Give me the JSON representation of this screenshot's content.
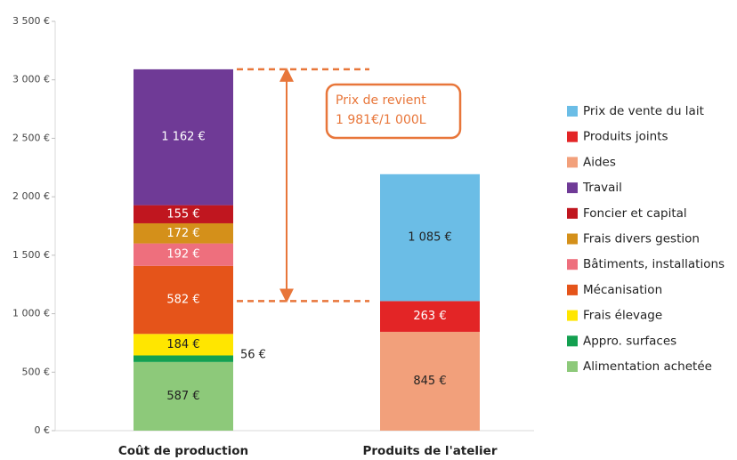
{
  "chart_data": {
    "type": "stacked_bar",
    "categories": [
      "Coût de production",
      "Produits de l'atelier"
    ],
    "series": [
      {
        "name": "Alimentation achetée",
        "color": "#8dc97a",
        "label_color": "#222222",
        "values": [
          587,
          null
        ],
        "value_labels": [
          "587 €",
          null
        ]
      },
      {
        "name": "Appro. surfaces",
        "color": "#13a050",
        "label_color": "#222222",
        "values": [
          56,
          null
        ],
        "value_labels": [
          "56 €",
          null
        ]
      },
      {
        "name": "Frais élevage",
        "color": "#ffe600",
        "label_color": "#222222",
        "values": [
          184,
          null
        ],
        "value_labels": [
          "184 €",
          null
        ]
      },
      {
        "name": "Mécanisation",
        "color": "#e5541a",
        "label_color": "#ffffff",
        "values": [
          582,
          null
        ],
        "value_labels": [
          "582 €",
          null
        ]
      },
      {
        "name": "Bâtiments, installations",
        "color": "#ee6f7d",
        "label_color": "#ffffff",
        "values": [
          192,
          null
        ],
        "value_labels": [
          "192 €",
          null
        ]
      },
      {
        "name": "Frais divers gestion",
        "color": "#d4901a",
        "label_color": "#ffffff",
        "values": [
          172,
          null
        ],
        "value_labels": [
          "172 €",
          null
        ]
      },
      {
        "name": "Foncier et capital",
        "color": "#c0161f",
        "label_color": "#ffffff",
        "values": [
          155,
          null
        ],
        "value_labels": [
          "155 €",
          null
        ]
      },
      {
        "name": "Travail",
        "color": "#6f3a96",
        "label_color": "#ffffff",
        "values": [
          1162,
          null
        ],
        "value_labels": [
          "1 162 €",
          null
        ]
      },
      {
        "name": "Aides",
        "color": "#f2a07b",
        "label_color": "#222222",
        "values": [
          null,
          845
        ],
        "value_labels": [
          null,
          "845 €"
        ]
      },
      {
        "name": "Produits joints",
        "color": "#e32526",
        "label_color": "#ffffff",
        "values": [
          null,
          263
        ],
        "value_labels": [
          null,
          "263 €"
        ]
      },
      {
        "name": "Prix de vente du lait",
        "color": "#6bbde6",
        "label_color": "#222222",
        "values": [
          null,
          1085
        ],
        "value_labels": [
          null,
          "1 085 €"
        ]
      }
    ],
    "annotations": [
      "Prix de revient",
      "1 981€/1 000L"
    ],
    "ylim": [
      0,
      3500
    ],
    "yticks": [
      {
        "value": 0,
        "label": "0 €"
      },
      {
        "value": 500,
        "label": "500 €"
      },
      {
        "value": 1000,
        "label": "1 000 €"
      },
      {
        "value": 1500,
        "label": "1 500 €"
      },
      {
        "value": 2000,
        "label": "2 000 €"
      },
      {
        "value": 2500,
        "label": "2 500 €"
      },
      {
        "value": 3000,
        "label": "3 000 €"
      },
      {
        "value": 3500,
        "label": "3 500 €"
      }
    ],
    "grid": false,
    "legend": "right"
  }
}
